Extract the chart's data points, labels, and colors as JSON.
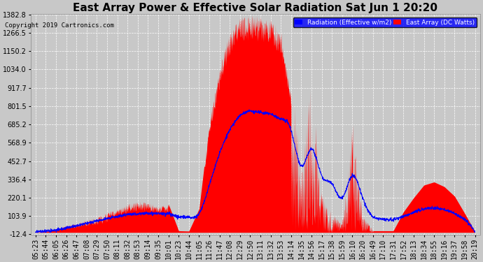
{
  "title": "East Array Power & Effective Solar Radiation Sat Jun 1 20:20",
  "copyright": "Copyright 2019 Cartronics.com",
  "legend_labels": [
    "Radiation (Effective w/m2)",
    "East Array (DC Watts)"
  ],
  "yticks": [
    1382.8,
    1266.5,
    1150.2,
    1034.0,
    917.7,
    801.5,
    685.2,
    568.9,
    452.7,
    336.4,
    220.1,
    103.9,
    -12.4
  ],
  "ymin": -12.4,
  "ymax": 1382.8,
  "background_color": "#c8c8c8",
  "radiation_color": "#0000ff",
  "power_color": "#ff0000",
  "grid_color": "#ffffff",
  "title_fontsize": 11,
  "tick_fontsize": 7,
  "time_labels": [
    "05:23",
    "05:44",
    "06:05",
    "06:26",
    "06:47",
    "07:08",
    "07:29",
    "07:50",
    "08:11",
    "08:32",
    "08:53",
    "09:14",
    "09:35",
    "10:01",
    "10:23",
    "10:44",
    "11:05",
    "11:26",
    "11:47",
    "12:08",
    "12:29",
    "12:50",
    "13:11",
    "13:32",
    "13:53",
    "14:14",
    "14:35",
    "14:56",
    "15:17",
    "15:38",
    "15:59",
    "16:10",
    "16:20",
    "16:49",
    "17:10",
    "17:31",
    "17:52",
    "18:13",
    "18:34",
    "18:55",
    "19:16",
    "19:37",
    "19:58",
    "20:19"
  ],
  "power_values": [
    5,
    15,
    30,
    50,
    80,
    110,
    130,
    150,
    160,
    170,
    190,
    210,
    195,
    185,
    10,
    8,
    120,
    600,
    950,
    1200,
    1350,
    1382,
    1370,
    1350,
    1300,
    1100,
    400,
    800,
    200,
    100,
    50,
    600,
    100,
    10,
    10,
    10,
    120,
    200,
    280,
    310,
    290,
    250,
    150,
    5
  ],
  "radiation_values": [
    5,
    10,
    20,
    35,
    55,
    75,
    90,
    100,
    110,
    115,
    120,
    125,
    130,
    128,
    100,
    95,
    120,
    250,
    450,
    600,
    700,
    750,
    740,
    720,
    680,
    600,
    400,
    500,
    350,
    300,
    200,
    350,
    200,
    100,
    80,
    80,
    100,
    130,
    150,
    160,
    150,
    120,
    80,
    5
  ]
}
